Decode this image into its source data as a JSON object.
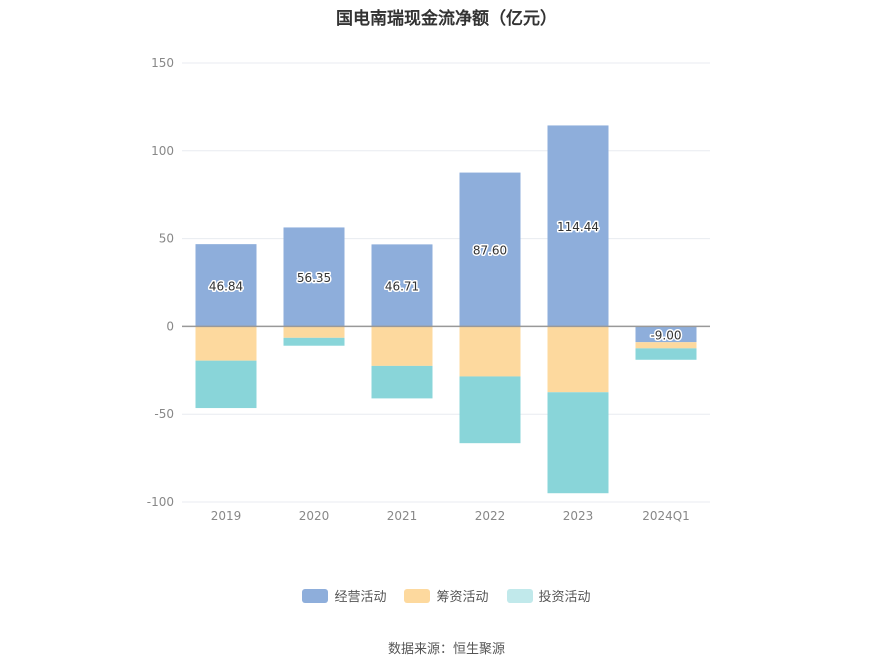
{
  "title": "国电南瑞现金流净额（亿元）",
  "source": "数据来源：恒生聚源",
  "colors": {
    "operating": "#8eaedb",
    "financing": "#fdd99e",
    "investing": "#89d5d9",
    "grid": "#e8ebf0",
    "axis": "#999999"
  },
  "chart_data": {
    "type": "bar",
    "stacked": true,
    "categories": [
      "2019",
      "2020",
      "2021",
      "2022",
      "2023",
      "2024Q1"
    ],
    "ylim": [
      -100,
      150
    ],
    "yticks": [
      150,
      100,
      50,
      0,
      -50,
      -100
    ],
    "series": [
      {
        "name": "经营活动",
        "values": [
          46.84,
          56.35,
          46.71,
          87.6,
          114.44,
          -9.0
        ],
        "labels": [
          "46.84",
          "56.35",
          "46.71",
          "87.60",
          "114.44",
          "-9.00"
        ]
      },
      {
        "name": "筹资活动",
        "values": [
          -19.5,
          -6.5,
          -22.5,
          -28.5,
          -37.5,
          -3.5
        ]
      },
      {
        "name": "投资活动",
        "values": [
          -27.0,
          -4.5,
          -18.5,
          -38.0,
          -57.5,
          -6.5
        ]
      }
    ],
    "legend_position": "bottom",
    "grid": true
  }
}
